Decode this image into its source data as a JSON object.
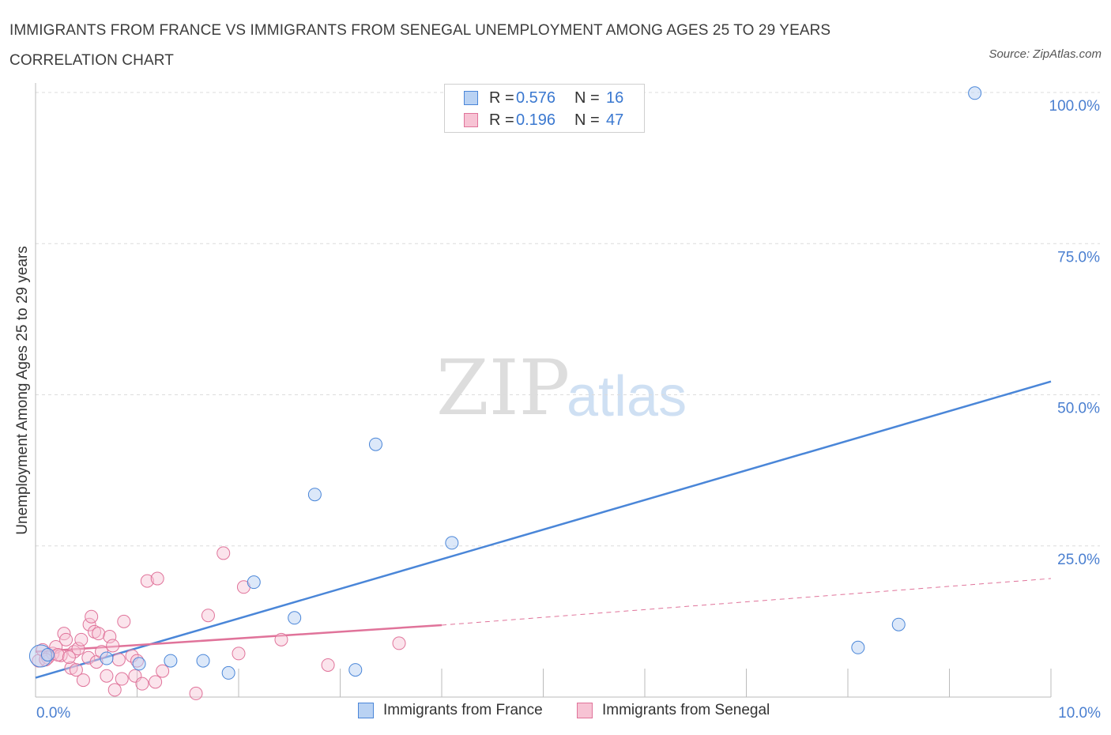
{
  "title": "IMMIGRANTS FROM FRANCE VS IMMIGRANTS FROM SENEGAL UNEMPLOYMENT AMONG AGES 25 TO 29 YEARS CORRELATION CHART",
  "source": "Source: ZipAtlas.com",
  "watermark": {
    "zip": "ZIP",
    "atlas": "atlas"
  },
  "legend": {
    "rows": [
      {
        "r_label": "R =",
        "r_value": "0.576",
        "n_label": "N =",
        "n_value": "16"
      },
      {
        "r_label": "R =",
        "r_value": "0.196",
        "n_label": "N =",
        "n_value": "47"
      }
    ]
  },
  "bottom_legend": [
    "Immigrants from France",
    "Immigrants from Senegal"
  ],
  "chart_data": {
    "type": "scatter",
    "title": "IMMIGRANTS FROM FRANCE VS IMMIGRANTS FROM SENEGAL UNEMPLOYMENT AMONG AGES 25 TO 29 YEARS CORRELATION CHART",
    "xlabel": "",
    "ylabel": "Unemployment Among Ages 25 to 29 years",
    "xlim": [
      0,
      10
    ],
    "ylim": [
      0,
      100
    ],
    "x_tick_labels": [
      "0.0%",
      "10.0%"
    ],
    "y_tick_labels": [
      "100.0%",
      "75.0%",
      "50.0%",
      "25.0%"
    ],
    "y_ticks": [
      100,
      75,
      50,
      25
    ],
    "colors": {
      "france": "#4a86d8",
      "france_fill": "#b9d2f3",
      "senegal": "#e0739a",
      "senegal_fill": "#f7c3d4"
    },
    "series": [
      {
        "name": "Immigrants from France",
        "points": [
          [
            0.05,
            6.8
          ],
          [
            0.7,
            6.4
          ],
          [
            1.02,
            5.5
          ],
          [
            1.33,
            6.0
          ],
          [
            1.65,
            6.0
          ],
          [
            1.9,
            4.0
          ],
          [
            2.15,
            19.0
          ],
          [
            2.55,
            13.1
          ],
          [
            2.75,
            33.5
          ],
          [
            3.15,
            4.5
          ],
          [
            3.35,
            41.8
          ],
          [
            4.1,
            25.5
          ],
          [
            8.1,
            8.2
          ],
          [
            8.5,
            12.0
          ],
          [
            9.25,
            99.9
          ],
          [
            0.12,
            7.0
          ]
        ],
        "trend": {
          "x": [
            0,
            10
          ],
          "y": [
            3.2,
            52.2
          ],
          "style": "solid"
        }
      },
      {
        "name": "Immigrants from Senegal",
        "points": [
          [
            0.03,
            6.0
          ],
          [
            0.07,
            7.8
          ],
          [
            0.12,
            6.5
          ],
          [
            0.17,
            7.2
          ],
          [
            0.2,
            8.3
          ],
          [
            0.25,
            6.9
          ],
          [
            0.28,
            10.5
          ],
          [
            0.3,
            9.5
          ],
          [
            0.35,
            4.8
          ],
          [
            0.38,
            7.5
          ],
          [
            0.4,
            4.5
          ],
          [
            0.42,
            8.0
          ],
          [
            0.45,
            9.5
          ],
          [
            0.47,
            2.8
          ],
          [
            0.52,
            6.5
          ],
          [
            0.53,
            12.0
          ],
          [
            0.55,
            13.3
          ],
          [
            0.58,
            10.8
          ],
          [
            0.6,
            5.8
          ],
          [
            0.62,
            10.5
          ],
          [
            0.65,
            7.5
          ],
          [
            0.7,
            3.5
          ],
          [
            0.73,
            10.0
          ],
          [
            0.76,
            8.5
          ],
          [
            0.78,
            1.2
          ],
          [
            0.82,
            6.2
          ],
          [
            0.85,
            3.0
          ],
          [
            0.87,
            12.5
          ],
          [
            0.95,
            6.8
          ],
          [
            0.98,
            3.5
          ],
          [
            1.0,
            6.0
          ],
          [
            1.05,
            2.2
          ],
          [
            1.1,
            19.2
          ],
          [
            1.18,
            2.5
          ],
          [
            1.2,
            19.6
          ],
          [
            1.25,
            4.3
          ],
          [
            1.58,
            0.6
          ],
          [
            1.7,
            13.5
          ],
          [
            1.85,
            23.8
          ],
          [
            2.0,
            7.2
          ],
          [
            2.05,
            18.2
          ],
          [
            2.42,
            9.5
          ],
          [
            2.88,
            5.3
          ],
          [
            3.58,
            8.9
          ],
          [
            0.1,
            6.2
          ],
          [
            0.22,
            7.0
          ],
          [
            0.33,
            6.6
          ]
        ],
        "trend": {
          "x": [
            0,
            4.0
          ],
          "y": [
            7.5,
            11.9
          ],
          "style": "solid",
          "extension": {
            "x": [
              4.0,
              10
            ],
            "y": [
              11.9,
              19.6
            ],
            "style": "dashed"
          }
        }
      }
    ]
  }
}
